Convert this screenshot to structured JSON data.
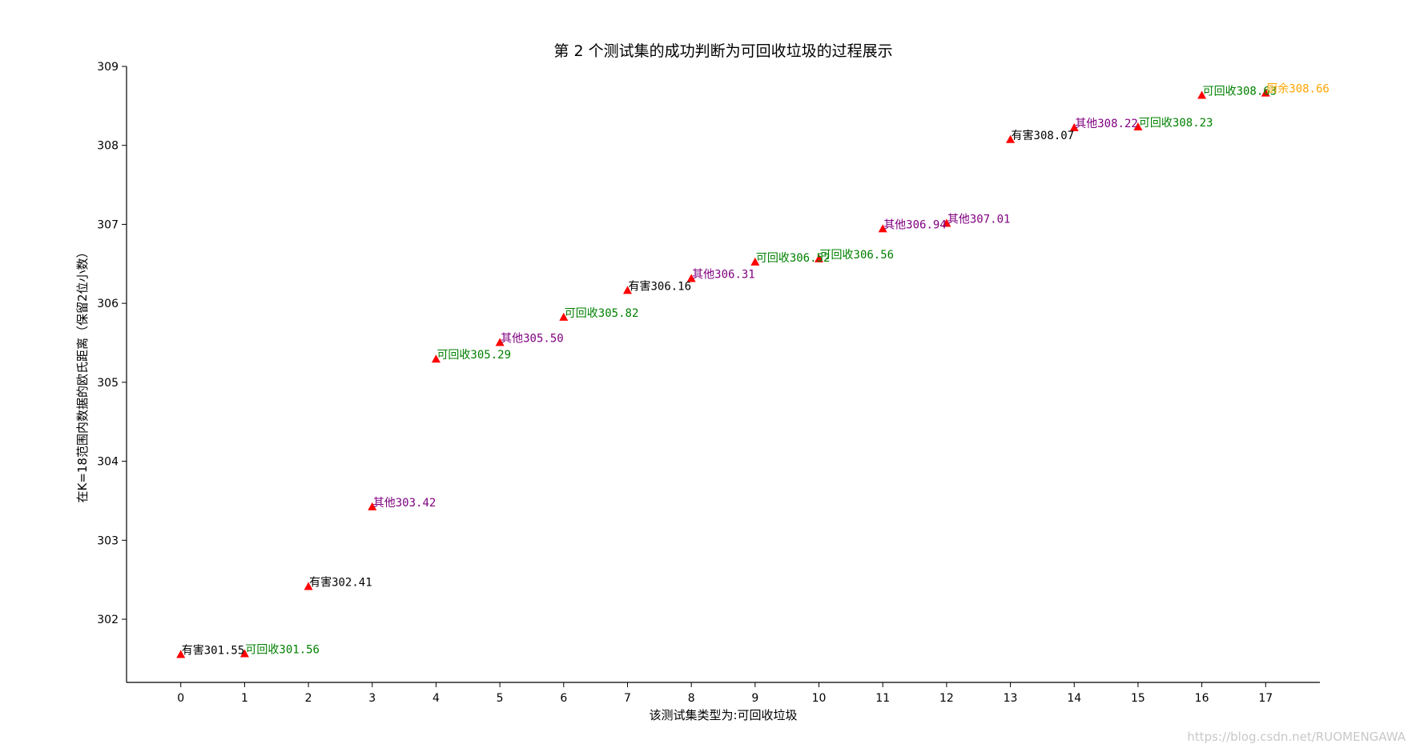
{
  "chart_data": {
    "type": "scatter",
    "title": "第 2 个测试集的成功判断为可回收垃圾的过程展示",
    "xlabel": "该测试集类型为:可回收垃圾",
    "ylabel": "在K=18范围内数据的欧氏距离（保留2位小数）",
    "xlim": [
      -0.85,
      17.85
    ],
    "ylim": [
      301.2,
      309.0
    ],
    "xticks": [
      0,
      1,
      2,
      3,
      4,
      5,
      6,
      7,
      8,
      9,
      10,
      11,
      12,
      13,
      14,
      15,
      16,
      17
    ],
    "yticks": [
      302,
      303,
      304,
      305,
      306,
      307,
      308,
      309
    ],
    "marker": "triangle",
    "marker_color": "#ff0000",
    "category_colors": {
      "有害": "#000000",
      "可回收": "#008000",
      "其他": "#800080",
      "厨余": "#ffa500"
    },
    "points": [
      {
        "x": 0,
        "y": 301.55,
        "category": "有害",
        "label": "有害301.55"
      },
      {
        "x": 1,
        "y": 301.56,
        "category": "可回收",
        "label": "可回收301.56"
      },
      {
        "x": 2,
        "y": 302.41,
        "category": "有害",
        "label": "有害302.41"
      },
      {
        "x": 3,
        "y": 303.42,
        "category": "其他",
        "label": "其他303.42"
      },
      {
        "x": 4,
        "y": 305.29,
        "category": "可回收",
        "label": "可回收305.29"
      },
      {
        "x": 5,
        "y": 305.5,
        "category": "其他",
        "label": "其他305.50"
      },
      {
        "x": 6,
        "y": 305.82,
        "category": "可回收",
        "label": "可回收305.82"
      },
      {
        "x": 7,
        "y": 306.16,
        "category": "有害",
        "label": "有害306.16"
      },
      {
        "x": 8,
        "y": 306.31,
        "category": "其他",
        "label": "其他306.31"
      },
      {
        "x": 9,
        "y": 306.52,
        "category": "可回收",
        "label": "可回收306.52"
      },
      {
        "x": 10,
        "y": 306.56,
        "category": "可回收",
        "label": "可回收306.56"
      },
      {
        "x": 11,
        "y": 306.94,
        "category": "其他",
        "label": "其他306.94"
      },
      {
        "x": 12,
        "y": 307.01,
        "category": "其他",
        "label": "其他307.01"
      },
      {
        "x": 13,
        "y": 308.07,
        "category": "有害",
        "label": "有害308.07"
      },
      {
        "x": 14,
        "y": 308.22,
        "category": "其他",
        "label": "其他308.22"
      },
      {
        "x": 15,
        "y": 308.23,
        "category": "可回收",
        "label": "可回收308.23"
      },
      {
        "x": 16,
        "y": 308.63,
        "category": "可回收",
        "label": "可回收308.63"
      },
      {
        "x": 17,
        "y": 308.66,
        "category": "厨余",
        "label": "厨余308.66"
      }
    ]
  },
  "watermark": "https://blog.csdn.net/RUOMENGAWA"
}
